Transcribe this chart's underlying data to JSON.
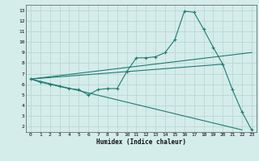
{
  "xlabel": "Humidex (Indice chaleur)",
  "xlim": [
    -0.5,
    23.5
  ],
  "ylim": [
    1.5,
    13.5
  ],
  "yticks": [
    2,
    3,
    4,
    5,
    6,
    7,
    8,
    9,
    10,
    11,
    12,
    13
  ],
  "xticks": [
    0,
    1,
    2,
    3,
    4,
    5,
    6,
    7,
    8,
    9,
    10,
    11,
    12,
    13,
    14,
    15,
    16,
    17,
    18,
    19,
    20,
    21,
    22,
    23
  ],
  "bg_color": "#d4ecea",
  "grid_color": "#b8d8d4",
  "line_color": "#1e7b72",
  "line1_x": [
    0,
    1,
    2,
    3,
    4,
    5,
    6,
    7,
    8,
    9,
    10,
    11,
    12,
    13,
    14,
    15,
    16,
    17,
    18,
    19,
    20,
    21,
    22,
    23
  ],
  "line1_y": [
    6.5,
    6.2,
    6.0,
    5.8,
    5.6,
    5.5,
    5.0,
    5.5,
    5.6,
    5.6,
    7.2,
    8.5,
    8.5,
    8.6,
    9.0,
    10.2,
    12.9,
    12.8,
    11.2,
    9.5,
    7.9,
    5.5,
    3.4,
    1.7
  ],
  "line2_x": [
    0,
    23
  ],
  "line2_y": [
    6.5,
    9.0
  ],
  "line3_x": [
    0,
    20
  ],
  "line3_y": [
    6.5,
    7.9
  ],
  "line4_x": [
    0,
    22
  ],
  "line4_y": [
    6.5,
    1.7
  ]
}
